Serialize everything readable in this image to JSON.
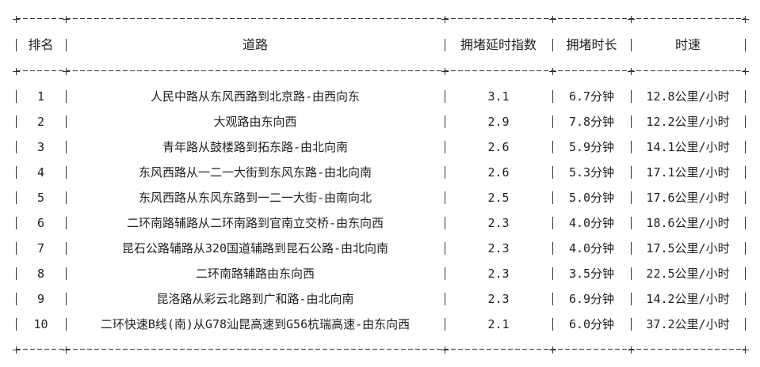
{
  "table": {
    "headers": [
      "排名",
      "道路",
      "拥堵延时指数",
      "拥堵时长",
      "时速"
    ],
    "rows": [
      [
        "1",
        "人民中路从东风西路到北京路-由西向东",
        "3.1",
        "6.7分钟",
        "12.8公里/小时"
      ],
      [
        "2",
        "大观路由东向西",
        "2.9",
        "7.8分钟",
        "12.2公里/小时"
      ],
      [
        "3",
        "青年路从鼓楼路到拓东路-由北向南",
        "2.6",
        "5.9分钟",
        "14.1公里/小时"
      ],
      [
        "4",
        "东风西路从一二一大街到东风东路-由北向南",
        "2.6",
        "5.3分钟",
        "17.1公里/小时"
      ],
      [
        "5",
        "东风西路从东风东路到一二一大街-由南向北",
        "2.5",
        "5.0分钟",
        "17.6公里/小时"
      ],
      [
        "6",
        "二环南路辅路从二环南路到官南立交桥-由东向西",
        "2.3",
        "4.0分钟",
        "18.6公里/小时"
      ],
      [
        "7",
        "昆石公路辅路从320国道辅路到昆石公路-由北向南",
        "2.3",
        "4.0分钟",
        "17.5公里/小时"
      ],
      [
        "8",
        "二环南路辅路由东向西",
        "2.3",
        "3.5分钟",
        "22.5公里/小时"
      ],
      [
        "9",
        "昆洛路从彩云北路到广和路-由北向南",
        "2.3",
        "6.9分钟",
        "14.2公里/小时"
      ],
      [
        "10",
        "二环快速B线(南)从G78汕昆高速到G56杭瑞高速-由东向西",
        "2.1",
        "6.0分钟",
        "37.2公里/小时"
      ]
    ]
  }
}
